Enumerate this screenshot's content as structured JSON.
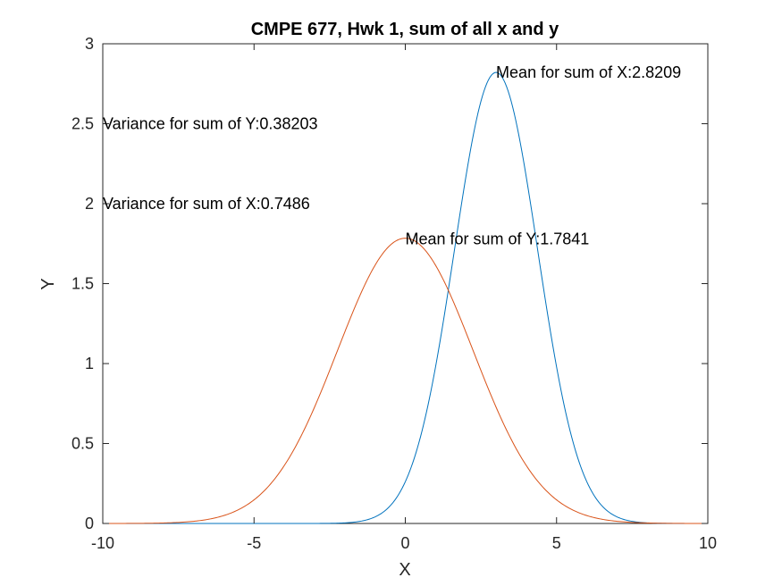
{
  "chart_data": {
    "type": "line",
    "title": "CMPE 677, Hwk 1, sum of all x and y",
    "xlabel": "X",
    "ylabel": "Y",
    "xlim": [
      -10,
      10
    ],
    "ylim": [
      0,
      3
    ],
    "x_ticks": [
      "-10",
      "-5",
      "0",
      "5",
      "10"
    ],
    "y_ticks": [
      "0",
      "0.5",
      "1",
      "1.5",
      "2",
      "2.5",
      "3"
    ],
    "grid": false,
    "box": true,
    "series": [
      {
        "color": "#0072BD",
        "curve": "gaussian",
        "peak": 2.8209,
        "peak_x": 3.0,
        "spread": 1.375,
        "x": [
          -10,
          -6,
          -5,
          -4,
          -3,
          -2,
          -1,
          0,
          0.5,
          1,
          1.5,
          2,
          2.5,
          3,
          3.5,
          4,
          4.5,
          5,
          5.5,
          6,
          7,
          8,
          10
        ],
        "y": [
          0.0,
          0.0,
          0.0,
          0.0,
          0.002,
          0.01,
          0.04,
          0.26,
          0.45,
          0.98,
          1.37,
          2.0,
          2.6,
          2.82,
          2.6,
          2.0,
          1.55,
          0.98,
          0.55,
          0.26,
          0.04,
          0.004,
          0.0
        ]
      },
      {
        "color": "#D95319",
        "curve": "gaussian",
        "peak": 1.7841,
        "peak_x": 0.0,
        "spread": 2.24,
        "x": [
          -10,
          -8,
          -7,
          -6,
          -5,
          -4,
          -3,
          -2,
          -1,
          0,
          1,
          2,
          3,
          4,
          5,
          6,
          7,
          8,
          10
        ],
        "y": [
          0.0,
          0.004,
          0.02,
          0.05,
          0.15,
          0.36,
          0.74,
          1.2,
          1.61,
          1.78,
          1.61,
          1.2,
          0.74,
          0.36,
          0.15,
          0.05,
          0.02,
          0.004,
          0.0
        ]
      }
    ],
    "annotations": [
      {
        "text": "Mean for sum of X:2.8209",
        "x": 3.0,
        "y": 2.82
      },
      {
        "text": "Variance for sum of Y:0.38203",
        "x": -10,
        "y": 2.5
      },
      {
        "text": "Variance for sum of X:0.7486",
        "x": -10,
        "y": 2.0
      },
      {
        "text": "Mean for sum of Y:1.7841",
        "x": 0.0,
        "y": 1.78
      }
    ]
  }
}
